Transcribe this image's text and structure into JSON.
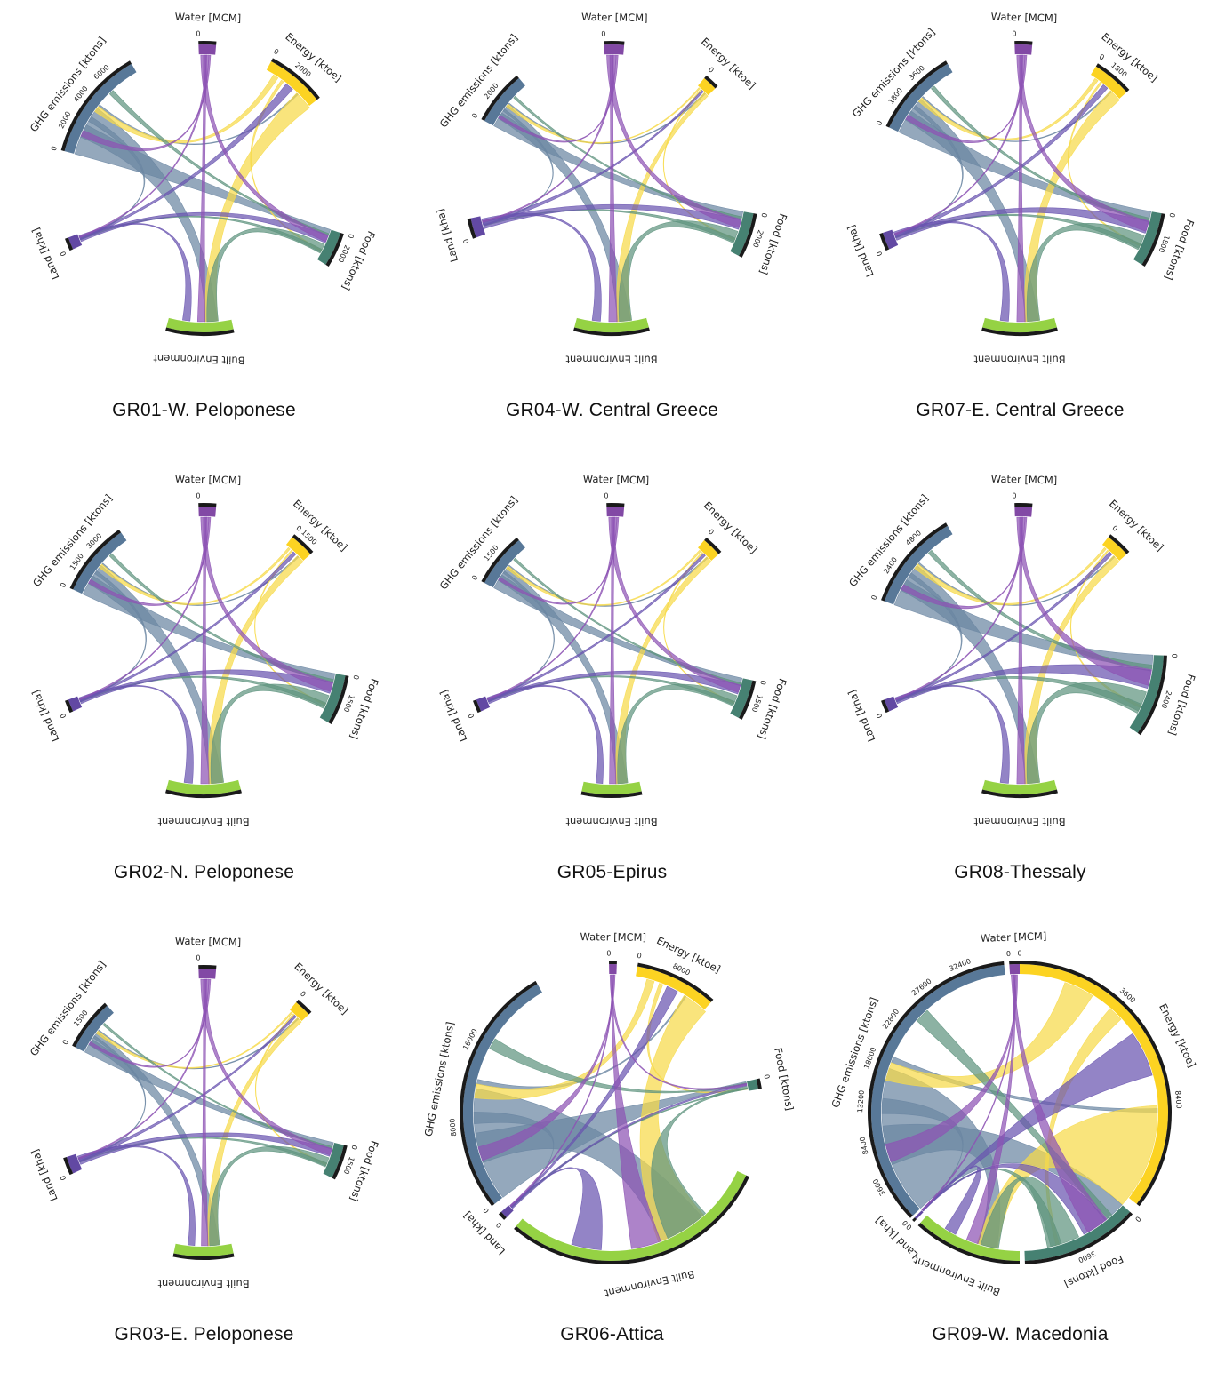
{
  "sector_names": {
    "water": "Water [MCM]",
    "energy": "Energy [ktoe]",
    "food": "Food [ktons]",
    "built": "Built Environment",
    "land": "Land [kha]",
    "ghg": "GHG emissions [ktons]"
  },
  "colors": {
    "water": "#7b3fa0",
    "energy": "#fcd116",
    "food": "#3c7a6a",
    "built": "#8fd03a",
    "land": "#5a3f9e",
    "ghg": "#4f7192",
    "ribbon_ghg": "#6b86a2",
    "ribbon_energy": "#f7da4a",
    "ribbon_food": "#5f947f",
    "ribbon_land": "#6a55b0",
    "ribbon_water": "#8d53b4",
    "rim": "#1a1a1a"
  },
  "panels": [
    {
      "caption": "GR01-W. Peloponese",
      "sectors": {
        "water": {
          "ticks": [
            "0"
          ]
        },
        "energy": {
          "ticks": [
            "0",
            "2000"
          ]
        },
        "food": {
          "ticks": [
            "0",
            "2000"
          ]
        },
        "built": {
          "ticks": []
        },
        "land": {
          "ticks": [
            "0"
          ]
        },
        "ghg": {
          "ticks": [
            "0",
            "2000",
            "4000",
            "6000"
          ]
        }
      }
    },
    {
      "caption": "GR04-W. Central Greece",
      "sectors": {
        "water": {
          "ticks": [
            "0"
          ]
        },
        "energy": {
          "ticks": [
            "0"
          ]
        },
        "food": {
          "ticks": [
            "0",
            "2000"
          ]
        },
        "built": {
          "ticks": []
        },
        "land": {
          "ticks": [
            "0"
          ]
        },
        "ghg": {
          "ticks": [
            "0",
            "2000"
          ]
        }
      }
    },
    {
      "caption": "GR07-E. Central Greece",
      "sectors": {
        "water": {
          "ticks": [
            "0"
          ]
        },
        "energy": {
          "ticks": [
            "0",
            "1800"
          ]
        },
        "food": {
          "ticks": [
            "0",
            "1800"
          ]
        },
        "built": {
          "ticks": []
        },
        "land": {
          "ticks": [
            "0"
          ]
        },
        "ghg": {
          "ticks": [
            "0",
            "1800",
            "3600"
          ]
        }
      }
    },
    {
      "caption": "GR02-N. Peloponese",
      "sectors": {
        "water": {
          "ticks": [
            "0"
          ]
        },
        "energy": {
          "ticks": [
            "0",
            "1500"
          ]
        },
        "food": {
          "ticks": [
            "0",
            "1500"
          ]
        },
        "built": {
          "ticks": []
        },
        "land": {
          "ticks": [
            "0"
          ]
        },
        "ghg": {
          "ticks": [
            "0",
            "1500",
            "3000"
          ]
        }
      }
    },
    {
      "caption": "GR05-Epirus",
      "sectors": {
        "water": {
          "ticks": [
            "0"
          ]
        },
        "energy": {
          "ticks": [
            "0"
          ]
        },
        "food": {
          "ticks": [
            "0",
            "1500"
          ]
        },
        "built": {
          "ticks": []
        },
        "land": {
          "ticks": [
            "0"
          ]
        },
        "ghg": {
          "ticks": [
            "0",
            "1500"
          ]
        }
      }
    },
    {
      "caption": "GR08-Thessaly",
      "sectors": {
        "water": {
          "ticks": [
            "0"
          ]
        },
        "energy": {
          "ticks": [
            "0"
          ]
        },
        "food": {
          "ticks": [
            "0",
            "2400"
          ]
        },
        "built": {
          "ticks": []
        },
        "land": {
          "ticks": [
            "0"
          ]
        },
        "ghg": {
          "ticks": [
            "0",
            "2400",
            "4800"
          ]
        }
      }
    },
    {
      "caption": "GR03-E. Peloponese",
      "sectors": {
        "water": {
          "ticks": [
            "0"
          ]
        },
        "energy": {
          "ticks": [
            "0"
          ]
        },
        "food": {
          "ticks": [
            "0",
            "1500"
          ]
        },
        "built": {
          "ticks": []
        },
        "land": {
          "ticks": [
            "0"
          ]
        },
        "ghg": {
          "ticks": [
            "0",
            "1500"
          ]
        }
      }
    },
    {
      "caption": "GR06-Attica",
      "sectors": {
        "water": {
          "ticks": [
            "0"
          ]
        },
        "energy": {
          "ticks": [
            "0",
            "8000"
          ]
        },
        "food": {
          "ticks": [
            "0"
          ]
        },
        "built": {
          "ticks": []
        },
        "land": {
          "ticks": [
            "0"
          ]
        },
        "ghg": {
          "ticks": [
            "0",
            "8000",
            "16000"
          ]
        }
      }
    },
    {
      "caption": "GR09-W. Macedonia",
      "sectors": {
        "water": {
          "ticks": [
            "0"
          ]
        },
        "energy": {
          "ticks": [
            "0",
            "3600",
            "8400"
          ]
        },
        "food": {
          "ticks": [
            "0",
            "3600"
          ]
        },
        "built": {
          "ticks": []
        },
        "land": {
          "ticks": [
            "0"
          ]
        },
        "ghg": {
          "ticks": [
            "0",
            "3600",
            "8400",
            "13200",
            "18000",
            "22800",
            "27600",
            "32400"
          ]
        }
      }
    }
  ]
}
